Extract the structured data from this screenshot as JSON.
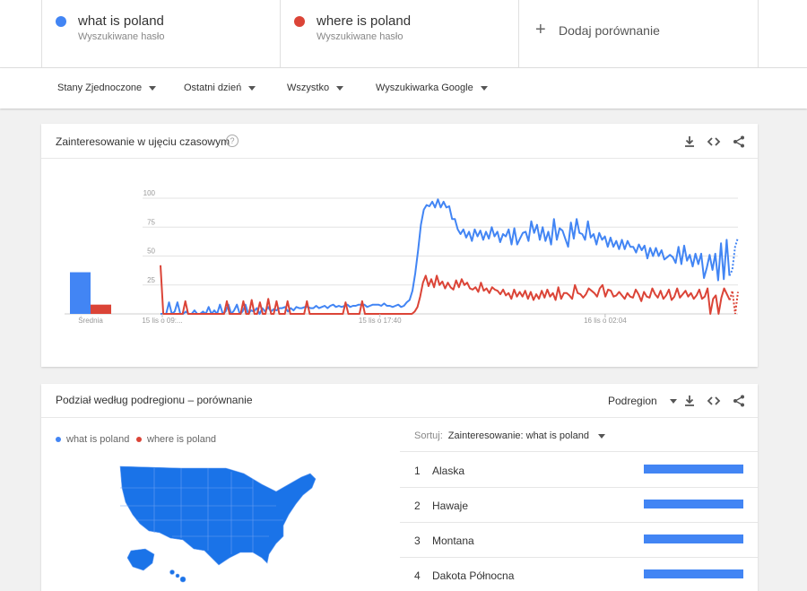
{
  "search_terms": [
    {
      "term": "what is poland",
      "subtitle": "Wyszukiwane hasło",
      "color": "#4285f4"
    },
    {
      "term": "where is poland",
      "subtitle": "Wyszukiwane hasło",
      "color": "#db4437"
    }
  ],
  "add_comparison": {
    "icon": "plus-icon",
    "label": "Dodaj porównanie"
  },
  "filters": [
    {
      "label": "Stany Zjednoczone"
    },
    {
      "label": "Ostatni dzień"
    },
    {
      "label": "Wszystko"
    },
    {
      "label": "Wyszukiwarka Google"
    }
  ],
  "interest_card": {
    "title": "Zainteresowanie w ujęciu czasowym",
    "help_icon": "?",
    "actions": [
      "download-icon",
      "embed-icon",
      "share-icon"
    ]
  },
  "chart_data": {
    "type": "line",
    "title": "",
    "ylim": [
      0,
      100
    ],
    "y_ticks": [
      "100",
      "75",
      "50",
      "25"
    ],
    "x_ticks": [
      "15 lis o 09:...",
      "15 lis o 17:40",
      "16 lis o 02:04"
    ],
    "grid": true,
    "average": {
      "label": "Średnia",
      "values": [
        {
          "name": "what is poland",
          "value": 36
        },
        {
          "name": "where is poland",
          "value": 8
        }
      ]
    },
    "series": [
      {
        "name": "what is poland",
        "color": "#4285f4",
        "values": [
          0,
          0,
          0,
          10,
          0,
          2,
          10,
          0,
          0,
          2,
          0,
          0,
          3,
          0,
          0,
          2,
          0,
          6,
          0,
          3,
          0,
          8,
          0,
          2,
          8,
          0,
          3,
          8,
          0,
          2,
          8,
          0,
          3,
          2,
          5,
          0,
          5,
          2,
          6,
          2,
          4,
          3,
          5,
          5,
          6,
          2,
          5,
          3,
          6,
          5,
          5,
          6,
          6,
          5,
          5,
          7,
          5,
          6,
          7,
          5,
          7,
          8,
          6,
          7,
          6,
          7,
          8,
          6,
          7,
          7,
          8,
          8,
          8,
          6,
          7,
          8,
          8,
          8,
          7,
          9,
          7,
          7,
          6,
          7,
          8,
          6,
          7,
          10,
          12,
          20,
          35,
          55,
          77,
          90,
          94,
          93,
          97,
          92,
          99,
          92,
          97,
          92,
          93,
          82,
          82,
          73,
          69,
          73,
          66,
          71,
          63,
          73,
          67,
          72,
          64,
          71,
          65,
          75,
          67,
          71,
          62,
          69,
          67,
          73,
          60,
          74,
          60,
          65,
          70,
          71,
          63,
          80,
          70,
          77,
          64,
          75,
          63,
          71,
          60,
          82,
          64,
          74,
          72,
          65,
          58,
          79,
          65,
          82,
          70,
          69,
          64,
          80,
          66,
          69,
          60,
          70,
          64,
          67,
          58,
          66,
          58,
          63,
          56,
          64,
          56,
          63,
          58,
          58,
          53,
          60,
          55,
          59,
          48,
          57,
          50,
          57,
          50,
          55,
          47,
          49,
          51,
          49,
          44,
          58,
          43,
          59,
          46,
          51,
          41,
          52,
          43,
          52,
          31,
          40,
          51,
          38,
          52,
          29,
          61,
          30,
          64,
          33,
          38,
          58,
          66
        ],
        "projected_tail": true
      },
      {
        "name": "where is poland",
        "color": "#db4437",
        "values": [
          42,
          0,
          0,
          0,
          0,
          0,
          0,
          0,
          0,
          11,
          0,
          0,
          0,
          0,
          0,
          0,
          0,
          0,
          0,
          0,
          0,
          0,
          0,
          0,
          11,
          0,
          0,
          0,
          0,
          0,
          11,
          0,
          0,
          12,
          0,
          0,
          10,
          0,
          0,
          13,
          0,
          0,
          11,
          0,
          0,
          0,
          11,
          0,
          0,
          0,
          0,
          0,
          0,
          11,
          0,
          0,
          0,
          0,
          0,
          0,
          0,
          0,
          0,
          0,
          0,
          0,
          0,
          10,
          0,
          0,
          0,
          0,
          0,
          11,
          0,
          0,
          0,
          0,
          0,
          0,
          0,
          0,
          0,
          0,
          0,
          0,
          0,
          0,
          0,
          0,
          0,
          0,
          2,
          6,
          15,
          27,
          33,
          24,
          30,
          23,
          33,
          25,
          28,
          22,
          27,
          23,
          21,
          29,
          23,
          30,
          25,
          27,
          22,
          21,
          23,
          19,
          27,
          20,
          22,
          18,
          23,
          21,
          20,
          17,
          21,
          16,
          18,
          13,
          21,
          15,
          19,
          15,
          20,
          13,
          19,
          12,
          17,
          13,
          20,
          14,
          21,
          15,
          18,
          12,
          23,
          13,
          18,
          18,
          16,
          13,
          25,
          18,
          17,
          14,
          17,
          22,
          20,
          18,
          15,
          22,
          25,
          15,
          21,
          20,
          15,
          16,
          19,
          16,
          13,
          18,
          15,
          14,
          21,
          17,
          11,
          19,
          15,
          14,
          22,
          17,
          14,
          20,
          13,
          16,
          21,
          12,
          15,
          22,
          14,
          17,
          20,
          15,
          18,
          13,
          16,
          21,
          13,
          15,
          22,
          0,
          13,
          16,
          0,
          14,
          22,
          17,
          12,
          20,
          0,
          19
        ],
        "projected_tail": true
      }
    ]
  },
  "region_card": {
    "title": "Podział według podregionu – porównanie",
    "dropdown": "Podregion",
    "legend": [
      {
        "label": "what is poland",
        "color": "#4285f4"
      },
      {
        "label": "where is poland",
        "color": "#db4437"
      }
    ],
    "sort_label": "Sortuj:",
    "sort_value": "Zainteresowanie: what is poland",
    "ranking": [
      {
        "rank": "1",
        "name": "Alaska",
        "value": 100
      },
      {
        "rank": "2",
        "name": "Hawaje",
        "value": 100
      },
      {
        "rank": "3",
        "name": "Montana",
        "value": 100
      },
      {
        "rank": "4",
        "name": "Dakota Północna",
        "value": 100
      }
    ],
    "map": {
      "fill": "#1a73e8",
      "stroke": "#5a95f0"
    }
  }
}
